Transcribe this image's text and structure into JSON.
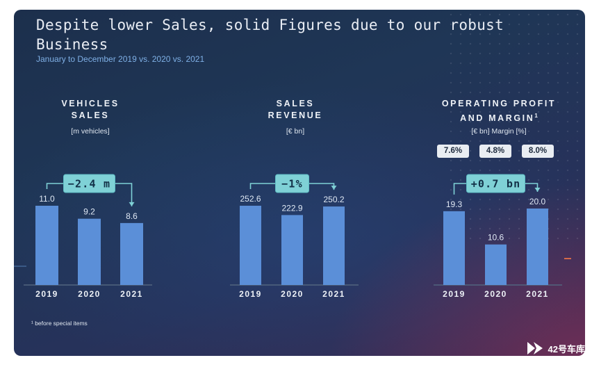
{
  "slide": {
    "title": "Despite lower Sales, solid Figures due to our robust Business",
    "subtitle": "January to December 2019 vs. 2020 vs. 2021",
    "footnote": "¹ before special items"
  },
  "watermark": {
    "text": "42号车库",
    "icon": "play-logo-icon"
  },
  "colors": {
    "bar": "#5b8fd8",
    "callout_bg": "#7fd1d6",
    "callout_border": "#5fbcc4",
    "callout_text": "#123047",
    "axis": "#52657f",
    "margin_chip_bg": "#e9edf2"
  },
  "chart_data": [
    {
      "type": "bar",
      "title": "VEHICLES SALES",
      "unit": "[m vehicles]",
      "categories": [
        "2019",
        "2020",
        "2021"
      ],
      "values": [
        11.0,
        9.2,
        8.6
      ],
      "value_labels": [
        "11.0",
        "9.2",
        "8.6"
      ],
      "callout": "−2.4 m",
      "grid": false
    },
    {
      "type": "bar",
      "title": "SALES REVENUE",
      "unit": "[€ bn]",
      "categories": [
        "2019",
        "2020",
        "2021"
      ],
      "values": [
        252.6,
        222.9,
        250.2
      ],
      "value_labels": [
        "252.6",
        "222.9",
        "250.2"
      ],
      "callout": "−1%",
      "grid": false
    },
    {
      "type": "bar",
      "title": "OPERATING PROFIT AND MARGIN",
      "title_footnote_marker": "1",
      "unit": "[€ bn] Margin [%]",
      "categories": [
        "2019",
        "2020",
        "2021"
      ],
      "values": [
        19.3,
        10.6,
        20.0
      ],
      "value_labels": [
        "19.3",
        "10.6",
        "20.0"
      ],
      "margins": [
        "7.6%",
        "4.8%",
        "8.0%"
      ],
      "callout": "+0.7 bn",
      "grid": false
    }
  ]
}
